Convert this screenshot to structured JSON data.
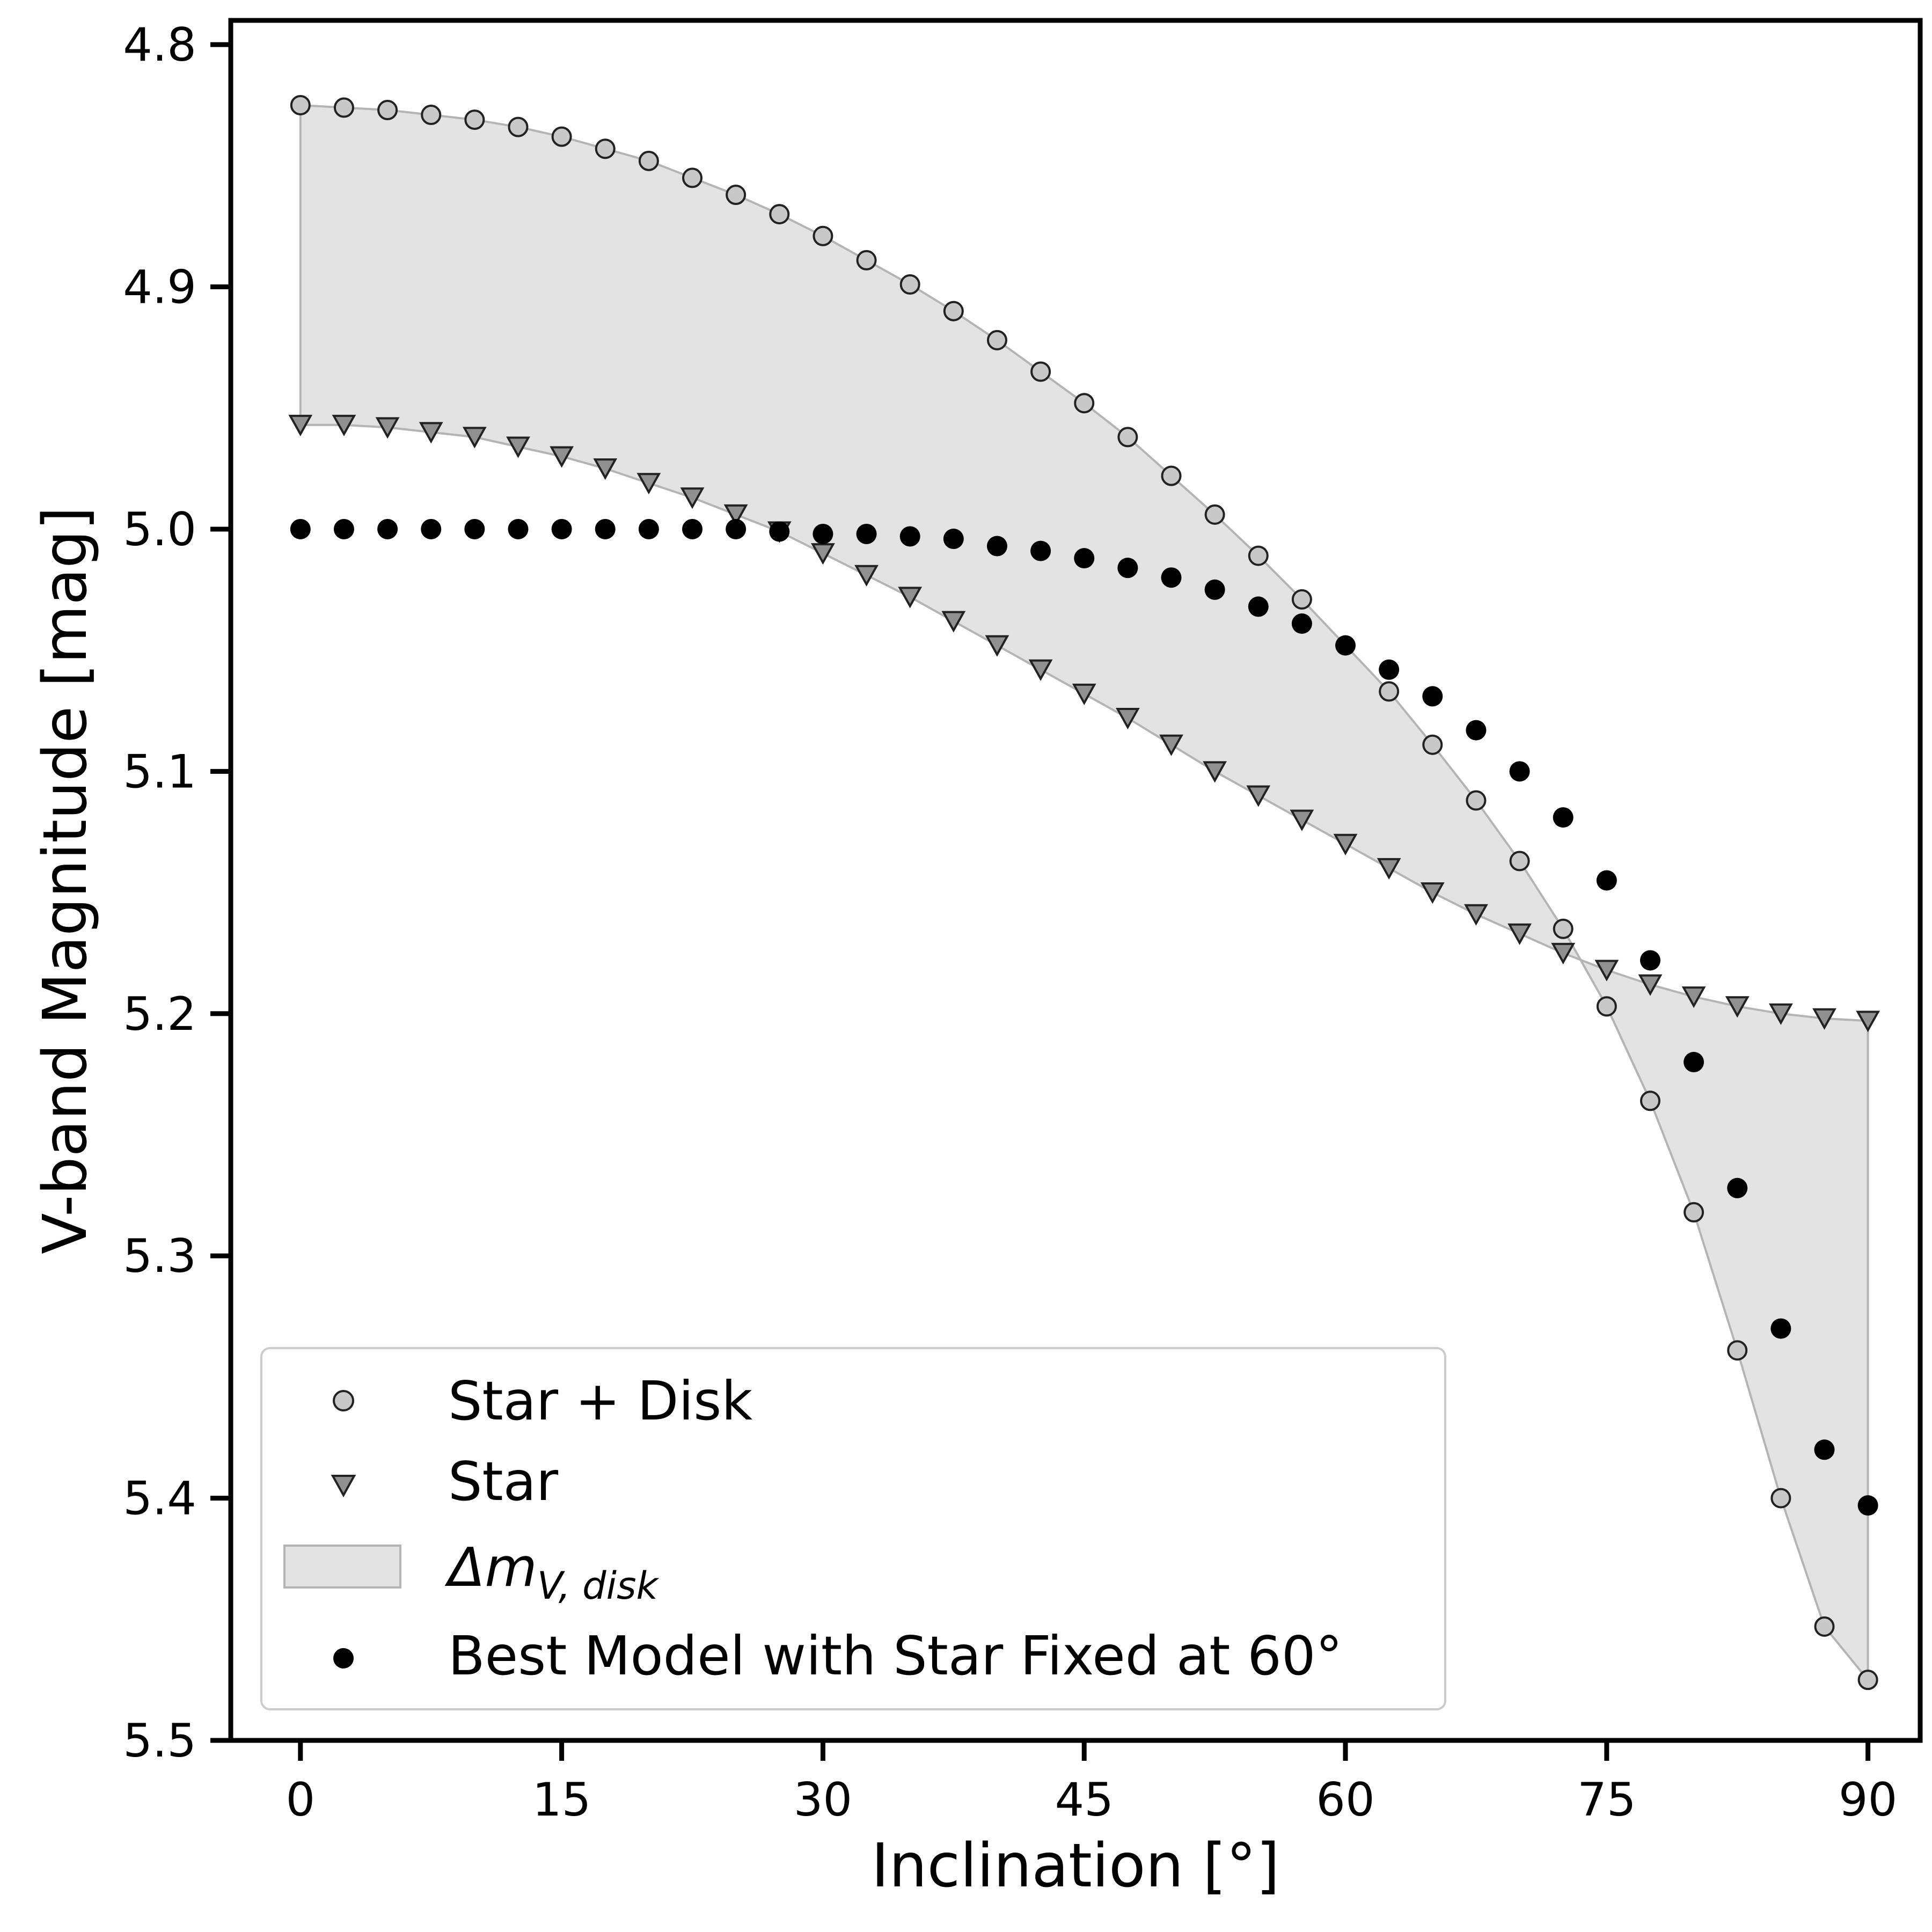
{
  "chart_data": {
    "type": "scatter",
    "title": "",
    "xlabel": "Inclination [°]",
    "ylabel": "V-band Magnitude [mag]",
    "xlim": [
      -4,
      93
    ],
    "ylim": [
      5.5,
      4.79
    ],
    "y_inverted": true,
    "x_ticks": [
      0,
      15,
      30,
      45,
      60,
      75,
      90
    ],
    "y_ticks": [
      4.8,
      4.9,
      5.0,
      5.1,
      5.2,
      5.3,
      5.4,
      5.5
    ],
    "x_tick_labels": [
      "0",
      "15",
      "30",
      "45",
      "60",
      "75",
      "90"
    ],
    "y_tick_labels": [
      "4.8",
      "4.9",
      "5.0",
      "5.1",
      "5.2",
      "5.3",
      "5.4",
      "5.5"
    ],
    "grid": false,
    "legend_position": "lower-left",
    "x": [
      0,
      2.5,
      5,
      7.5,
      10,
      12.5,
      15,
      17.5,
      20,
      22.5,
      25,
      27.5,
      30,
      32.5,
      35,
      37.5,
      40,
      42.5,
      45,
      47.5,
      50,
      52.5,
      55,
      57.5,
      60,
      62.5,
      65,
      67.5,
      70,
      72.5,
      75,
      77.5,
      80,
      82.5,
      85,
      87.5,
      90
    ],
    "series": [
      {
        "name": "Star + Disk",
        "marker": "circle",
        "color": "#c8c8c8",
        "edge_color": "#222222",
        "x": [
          0,
          2.5,
          5,
          7.5,
          10,
          12.5,
          15,
          17.5,
          20,
          22.5,
          25,
          27.5,
          30,
          32.5,
          35,
          37.5,
          40,
          42.5,
          45,
          47.5,
          50,
          52.5,
          55,
          57.5,
          62.5,
          65,
          67.5,
          70,
          72.5,
          75,
          77.5,
          80,
          82.5,
          85,
          87.5,
          90
        ],
        "values": [
          4.825,
          4.826,
          4.827,
          4.829,
          4.831,
          4.834,
          4.838,
          4.843,
          4.848,
          4.855,
          4.862,
          4.87,
          4.879,
          4.889,
          4.899,
          4.91,
          4.922,
          4.935,
          4.948,
          4.962,
          4.978,
          4.994,
          5.011,
          5.029,
          5.067,
          5.089,
          5.112,
          5.137,
          5.165,
          5.197,
          5.236,
          5.282,
          5.339,
          5.4,
          5.453,
          5.475
        ]
      },
      {
        "name": "Star",
        "marker": "triangle-down",
        "color": "#909090",
        "edge_color": "#222222",
        "x": [
          0,
          2.5,
          5,
          7.5,
          10,
          12.5,
          15,
          17.5,
          20,
          22.5,
          25,
          27.5,
          30,
          32.5,
          35,
          37.5,
          40,
          42.5,
          45,
          47.5,
          50,
          52.5,
          55,
          57.5,
          60,
          62.5,
          65,
          67.5,
          70,
          72.5,
          75,
          77.5,
          80,
          82.5,
          85,
          87.5,
          90
        ],
        "values": [
          4.957,
          4.957,
          4.958,
          4.96,
          4.962,
          4.966,
          4.97,
          4.975,
          4.981,
          4.987,
          4.994,
          5.001,
          5.01,
          5.019,
          5.028,
          5.038,
          5.048,
          5.058,
          5.068,
          5.078,
          5.089,
          5.1,
          5.11,
          5.12,
          5.13,
          5.14,
          5.15,
          5.159,
          5.167,
          5.175,
          5.182,
          5.188,
          5.193,
          5.197,
          5.2,
          5.202,
          5.203
        ]
      },
      {
        "name": "Best Model with Star Fixed at 60°",
        "marker": "filled-circle",
        "color": "#000000",
        "x": [
          0,
          2.5,
          5,
          7.5,
          10,
          12.5,
          15,
          17.5,
          20,
          22.5,
          25,
          27.5,
          30,
          32.5,
          35,
          37.5,
          40,
          42.5,
          45,
          47.5,
          50,
          52.5,
          55,
          57.5,
          60,
          62.5,
          65,
          67.5,
          70,
          72.5,
          75,
          77.5,
          80,
          82.5,
          85,
          87.5,
          90
        ],
        "values": [
          5.0,
          5.0,
          5.0,
          5.0,
          5.0,
          5.0,
          5.0,
          5.0,
          5.0,
          5.0,
          5.0,
          5.001,
          5.002,
          5.002,
          5.003,
          5.004,
          5.007,
          5.009,
          5.012,
          5.016,
          5.02,
          5.025,
          5.032,
          5.039,
          5.048,
          5.058,
          5.069,
          5.083,
          5.1,
          5.119,
          5.145,
          5.178,
          5.22,
          5.272,
          5.33,
          5.38,
          5.403
        ]
      }
    ],
    "fill_between": {
      "name": "Δm_{V, disk}",
      "color": "#e3e3e3",
      "edge_color": "#b4b4b4",
      "between": [
        "Star + Disk",
        "Star"
      ]
    },
    "legend": [
      {
        "label": "Star + Disk",
        "marker": "circle"
      },
      {
        "label": "Star",
        "marker": "triangle-down"
      },
      {
        "label_main": "Δm",
        "label_sub": "V, disk",
        "marker": "patch"
      },
      {
        "label": "Best Model with Star Fixed at 60°",
        "marker": "filled-circle"
      }
    ]
  }
}
